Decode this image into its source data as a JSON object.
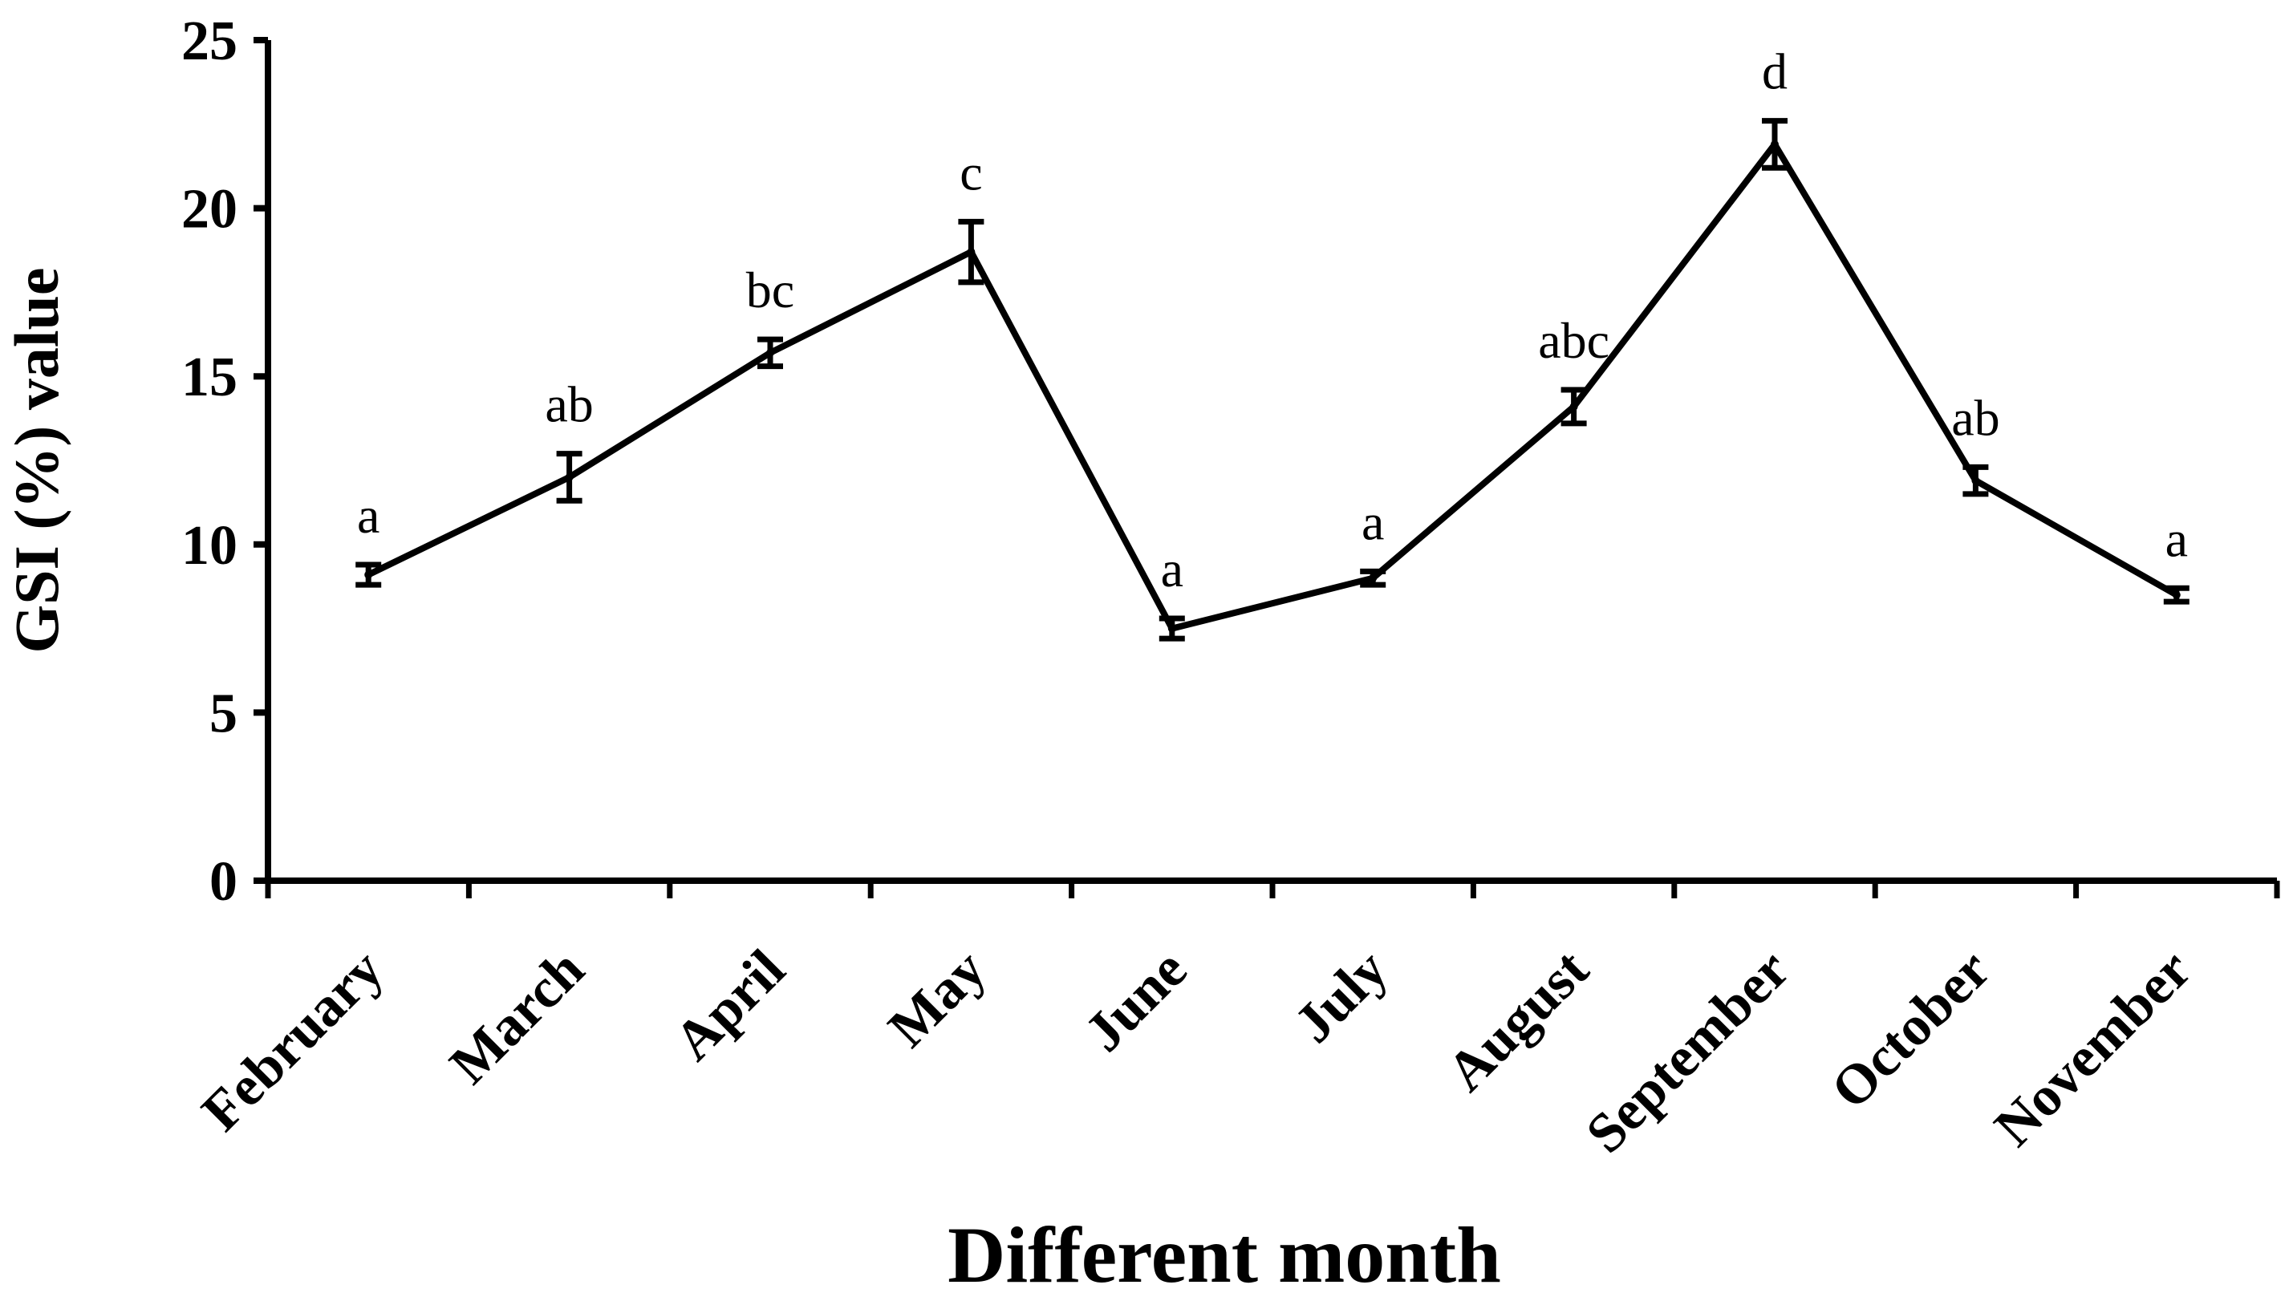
{
  "chart_data": {
    "type": "line",
    "categories": [
      "February",
      "March",
      "April",
      "May",
      "June",
      "July",
      "August",
      "September",
      "October",
      "November"
    ],
    "series": [
      {
        "values": [
          9.1,
          12.0,
          15.7,
          18.7,
          7.5,
          9.0,
          14.1,
          21.9,
          11.9,
          8.5
        ],
        "errors": [
          0.3,
          0.7,
          0.4,
          0.9,
          0.3,
          0.2,
          0.5,
          0.7,
          0.4,
          0.2
        ],
        "significance": [
          "a",
          "ab",
          "bc",
          "c",
          "a",
          "a",
          "abc",
          "d",
          "ab",
          "a"
        ]
      }
    ],
    "title": "",
    "xlabel": "Different month",
    "ylabel": "GSI (%) value",
    "ylim": [
      0,
      25
    ],
    "yticks": [
      "0",
      "5",
      "10",
      "15",
      "20",
      "25"
    ],
    "grid": false,
    "legend": "none",
    "line_color": "#000000"
  }
}
